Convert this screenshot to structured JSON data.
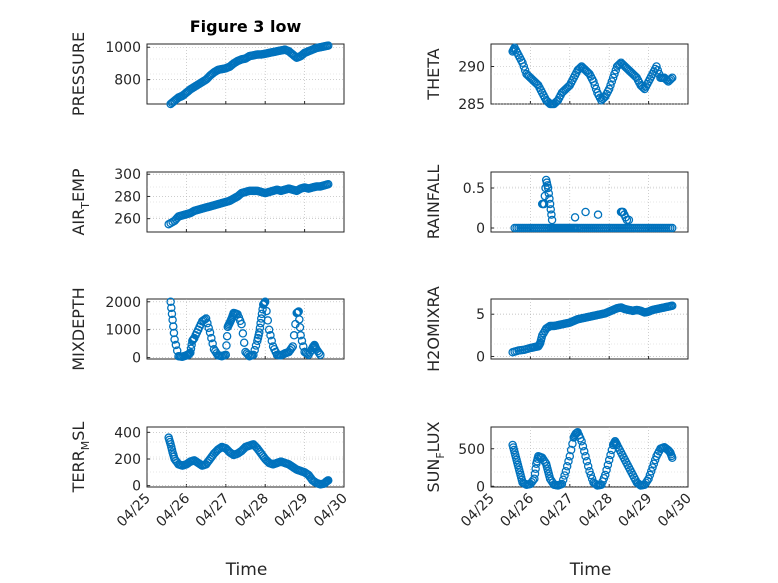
{
  "figure": {
    "background": "#ffffff",
    "marker_color": "#0072bd",
    "x_time_axis": {
      "label": "Time",
      "ticks": [
        "04/25",
        "04/26",
        "04/27",
        "04/28",
        "04/29",
        "04/30"
      ],
      "xlim": [
        0,
        5
      ]
    }
  },
  "chart_data": [
    {
      "type": "scatter",
      "title": "Figure 3 low",
      "ylabel": "PRESSURE",
      "ylim": [
        650,
        1020
      ],
      "yticks": [
        800,
        1000
      ],
      "grid": true,
      "series": [
        {
          "x": [
            0.6,
            0.7,
            0.8,
            0.9,
            1.0,
            1.1,
            1.2,
            1.3,
            1.4,
            1.5,
            1.6,
            1.7,
            1.8,
            1.9,
            2.0,
            2.1,
            2.2,
            2.3,
            2.4,
            2.5,
            2.6,
            2.7,
            2.8,
            2.9,
            3.0,
            3.1,
            3.2,
            3.3,
            3.4,
            3.5,
            3.6,
            3.7,
            3.8,
            3.9,
            4.0,
            4.1,
            4.2,
            4.3,
            4.4,
            4.5,
            4.6
          ],
          "y": [
            650,
            670,
            690,
            700,
            720,
            740,
            755,
            770,
            785,
            800,
            825,
            845,
            860,
            865,
            870,
            880,
            900,
            915,
            925,
            930,
            945,
            950,
            955,
            955,
            960,
            965,
            970,
            975,
            980,
            985,
            975,
            955,
            935,
            945,
            965,
            975,
            985,
            995,
            1000,
            1005,
            1010
          ]
        }
      ]
    },
    {
      "type": "scatter",
      "ylabel": "THETA",
      "ylim": [
        285,
        293
      ],
      "yticks": [
        285,
        290
      ],
      "grid": true,
      "series": [
        {
          "x": [
            0.55,
            0.6,
            0.7,
            0.8,
            0.9,
            1.0,
            1.1,
            1.2,
            1.3,
            1.4,
            1.5,
            1.6,
            1.7,
            1.8,
            1.9,
            2.0,
            2.1,
            2.2,
            2.3,
            2.4,
            2.5,
            2.6,
            2.7,
            2.8,
            2.9,
            3.0,
            3.1,
            3.2,
            3.3,
            3.4,
            3.5,
            3.6,
            3.7,
            3.8,
            3.9,
            4.0,
            4.1,
            4.2,
            4.3,
            4.4,
            4.5,
            4.6
          ],
          "y": [
            292,
            292.5,
            291.5,
            290.5,
            289,
            288.5,
            288,
            287.5,
            286.5,
            285.5,
            285,
            285,
            285.5,
            286.5,
            287,
            287.5,
            288.5,
            289.5,
            290,
            289.5,
            289,
            288,
            286.5,
            285.5,
            286,
            287,
            288.5,
            290,
            290.5,
            290,
            289.5,
            289,
            288.5,
            287.5,
            287,
            288,
            289,
            290,
            288.5,
            288.5,
            288,
            288.5
          ]
        }
      ]
    },
    {
      "type": "scatter",
      "ylabel": "AIR_TEMP",
      "ylim": [
        248,
        302
      ],
      "yticks": [
        260,
        280,
        300
      ],
      "grid": true,
      "series": [
        {
          "x": [
            0.55,
            0.7,
            0.8,
            0.9,
            1.0,
            1.1,
            1.2,
            1.3,
            1.4,
            1.5,
            1.6,
            1.7,
            1.8,
            1.9,
            2.0,
            2.1,
            2.2,
            2.3,
            2.4,
            2.5,
            2.6,
            2.7,
            2.8,
            2.9,
            3.0,
            3.1,
            3.2,
            3.3,
            3.4,
            3.5,
            3.6,
            3.7,
            3.8,
            3.9,
            4.0,
            4.1,
            4.2,
            4.3,
            4.4,
            4.5,
            4.6
          ],
          "y": [
            255,
            258,
            262,
            263,
            264,
            265,
            267,
            268,
            269,
            270,
            271,
            272,
            273,
            274,
            275,
            276,
            278,
            280,
            283,
            284,
            285,
            285,
            285,
            284,
            283,
            284,
            285,
            286,
            285,
            286,
            287,
            286,
            285,
            287,
            288,
            287,
            288,
            289,
            289,
            290,
            291
          ]
        }
      ]
    },
    {
      "type": "scatter",
      "ylabel": "RAINFALL",
      "ylim": [
        -0.05,
        0.7
      ],
      "yticks": [
        0,
        0.5
      ],
      "grid": true,
      "series": [
        {
          "x": [
            0.6,
            0.75,
            0.9,
            1.05,
            1.2,
            1.35,
            1.5,
            1.6,
            1.7,
            1.8,
            1.9,
            2.0,
            2.1,
            2.2,
            2.35,
            2.5,
            2.65,
            2.8,
            2.95,
            3.1,
            3.25,
            3.4,
            3.55,
            3.7,
            3.85,
            4.0,
            4.15,
            4.3,
            4.45,
            4.6,
            1.3,
            1.35,
            1.4,
            1.45,
            1.5,
            1.55,
            3.3,
            3.35,
            3.45
          ],
          "y": [
            0,
            0,
            0,
            0,
            0,
            0,
            0,
            0,
            0,
            0,
            0,
            0,
            0,
            0,
            0,
            0,
            0,
            0,
            0,
            0,
            0,
            0,
            0,
            0,
            0,
            0,
            0,
            0,
            0,
            0,
            0.3,
            0.3,
            0.6,
            0.5,
            0.3,
            0.1,
            0.2,
            0.2,
            0.1
          ]
        }
      ]
    },
    {
      "type": "scatter",
      "ylabel": "MIXDEPTH",
      "ylim": [
        -50,
        2100
      ],
      "yticks": [
        0,
        1000,
        2000
      ],
      "grid": true,
      "series": [
        {
          "x": [
            0.6,
            0.65,
            0.7,
            0.8,
            0.9,
            1.0,
            1.05,
            1.1,
            1.15,
            1.2,
            1.3,
            1.4,
            1.5,
            1.6,
            1.7,
            1.8,
            1.9,
            2.0,
            2.05,
            2.1,
            2.15,
            2.2,
            2.3,
            2.4,
            2.5,
            2.6,
            2.7,
            2.8,
            2.85,
            2.9,
            2.95,
            3.0,
            3.1,
            3.2,
            3.3,
            3.4,
            3.5,
            3.6,
            3.7,
            3.8,
            3.85,
            3.9,
            4.0,
            4.1,
            4.2,
            4.25,
            4.3,
            4.4
          ],
          "y": [
            2000,
            1350,
            650,
            50,
            30,
            80,
            100,
            180,
            600,
            700,
            1000,
            1300,
            1400,
            900,
            300,
            80,
            50,
            100,
            1100,
            1250,
            1400,
            1600,
            1550,
            1200,
            200,
            50,
            100,
            600,
            900,
            1400,
            1900,
            2000,
            1000,
            400,
            100,
            80,
            150,
            200,
            400,
            1600,
            1650,
            800,
            200,
            100,
            350,
            450,
            300,
            100
          ]
        }
      ]
    },
    {
      "type": "scatter",
      "ylabel": "H2OMIXRA",
      "ylim": [
        -0.3,
        6.8
      ],
      "yticks": [
        0,
        5
      ],
      "grid": true,
      "series": [
        {
          "x": [
            0.55,
            0.7,
            0.85,
            1.0,
            1.1,
            1.2,
            1.25,
            1.3,
            1.4,
            1.5,
            1.6,
            1.7,
            1.8,
            1.9,
            2.0,
            2.1,
            2.2,
            2.3,
            2.4,
            2.5,
            2.6,
            2.7,
            2.8,
            2.9,
            3.0,
            3.1,
            3.2,
            3.3,
            3.4,
            3.5,
            3.6,
            3.7,
            3.8,
            3.9,
            4.0,
            4.1,
            4.2,
            4.3,
            4.4,
            4.5,
            4.6
          ],
          "y": [
            0.5,
            0.7,
            0.8,
            1.0,
            1.1,
            1.2,
            1.6,
            2.5,
            3.3,
            3.6,
            3.6,
            3.7,
            3.8,
            3.9,
            4.0,
            4.2,
            4.4,
            4.5,
            4.6,
            4.7,
            4.8,
            4.9,
            5.0,
            5.1,
            5.3,
            5.5,
            5.7,
            5.8,
            5.6,
            5.5,
            5.4,
            5.5,
            5.4,
            5.2,
            5.3,
            5.5,
            5.6,
            5.7,
            5.8,
            5.9,
            6.0
          ]
        }
      ]
    },
    {
      "type": "scatter",
      "ylabel": "TERR_MSL",
      "ylim": [
        -10,
        440
      ],
      "yticks": [
        0,
        200,
        400
      ],
      "grid": true,
      "series": [
        {
          "x": [
            0.55,
            0.6,
            0.65,
            0.7,
            0.8,
            0.9,
            1.0,
            1.1,
            1.2,
            1.3,
            1.4,
            1.5,
            1.6,
            1.7,
            1.8,
            1.9,
            2.0,
            2.1,
            2.2,
            2.3,
            2.4,
            2.5,
            2.6,
            2.7,
            2.8,
            2.9,
            3.0,
            3.1,
            3.2,
            3.3,
            3.4,
            3.5,
            3.6,
            3.7,
            3.8,
            3.9,
            4.0,
            4.1,
            4.2,
            4.3,
            4.4,
            4.5,
            4.55,
            4.6
          ],
          "y": [
            360,
            310,
            250,
            200,
            160,
            150,
            160,
            180,
            190,
            170,
            150,
            160,
            200,
            240,
            270,
            290,
            280,
            250,
            230,
            240,
            260,
            290,
            300,
            310,
            280,
            240,
            200,
            170,
            160,
            170,
            180,
            170,
            160,
            140,
            120,
            110,
            100,
            80,
            40,
            20,
            10,
            15,
            30,
            40
          ]
        }
      ]
    },
    {
      "type": "scatter",
      "ylabel": "SUN_FLUX",
      "ylim": [
        -10,
        790
      ],
      "yticks": [
        0,
        500
      ],
      "grid": true,
      "series": [
        {
          "x": [
            0.55,
            0.6,
            0.65,
            0.7,
            0.75,
            0.8,
            0.9,
            1.0,
            1.1,
            1.15,
            1.2,
            1.3,
            1.4,
            1.45,
            1.5,
            1.6,
            1.7,
            1.8,
            1.9,
            2.0,
            2.1,
            2.15,
            2.2,
            2.3,
            2.4,
            2.5,
            2.6,
            2.7,
            2.8,
            2.9,
            3.0,
            3.1,
            3.15,
            3.2,
            3.3,
            3.4,
            3.5,
            3.6,
            3.7,
            3.8,
            3.9,
            4.0,
            4.1,
            4.2,
            4.3,
            4.4,
            4.5,
            4.55,
            4.6
          ],
          "y": [
            550,
            450,
            350,
            250,
            150,
            50,
            20,
            30,
            100,
            300,
            400,
            380,
            300,
            200,
            100,
            20,
            10,
            30,
            200,
            400,
            650,
            700,
            720,
            600,
            400,
            200,
            50,
            10,
            20,
            150,
            350,
            550,
            600,
            550,
            450,
            350,
            250,
            150,
            50,
            10,
            20,
            100,
            250,
            400,
            500,
            520,
            480,
            450,
            380
          ]
        }
      ]
    }
  ]
}
